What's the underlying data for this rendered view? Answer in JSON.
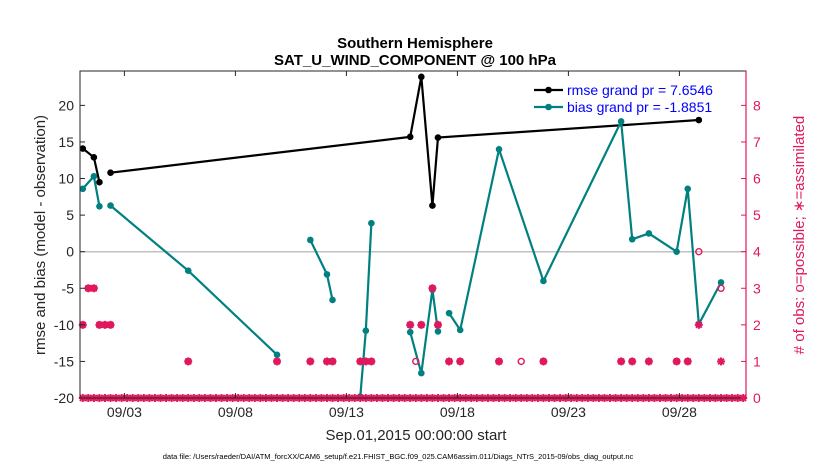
{
  "chart_data": {
    "type": "line",
    "title": "Southern Hemisphere",
    "subtitle": "SAT_U_WIND_COMPONENT @ 100 hPa",
    "xlabel": "Sep.01,2015 00:00:00 start",
    "ylabel": "rmse and bias (model - observation)",
    "y2label": "# of obs: o=possible; ∗=assimilated",
    "footnote": "data file: /Users/raeder/DAI/ATM_forcXX/CAM6_setup/f.e21.FHIST_BGC.f09_025.CAM6assim.011/Diags_NTrS_2015-09/obs_diag_output.nc",
    "xlim": [
      1.0,
      31.0
    ],
    "ylim": [
      -20,
      24.7
    ],
    "y2lim": [
      0,
      8.94
    ],
    "x_ticks": [
      3,
      8,
      13,
      18,
      23,
      28
    ],
    "x_tick_labels": [
      "09/03",
      "09/08",
      "09/13",
      "09/18",
      "09/23",
      "09/28"
    ],
    "y_ticks": [
      -20,
      -15,
      -10,
      -5,
      0,
      5,
      10,
      15,
      20
    ],
    "y2_ticks": [
      0,
      1,
      2,
      3,
      4,
      5,
      6,
      7,
      8
    ],
    "grid": false,
    "legend_position": "top-right",
    "zero_line": 0,
    "colors": {
      "rmse": "#000000",
      "bias": "#008080",
      "obs": "#e0185e",
      "zero": "#c0c0c0",
      "legend_text": "#0000ff"
    },
    "series": [
      {
        "name": "rmse grand pr = 7.6546",
        "points": [
          [
            1.125,
            14.1
          ],
          [
            1.625,
            12.9
          ],
          [
            1.875,
            9.5
          ],
          [
            2.125,
            null
          ],
          [
            2.375,
            10.8
          ],
          [
            15.875,
            15.7
          ],
          [
            16.375,
            23.9
          ],
          [
            16.875,
            6.3
          ],
          [
            17.125,
            15.6
          ],
          [
            28.875,
            18.0
          ]
        ]
      },
      {
        "name": "bias grand pr = -1.8851",
        "points": [
          [
            1.125,
            8.6
          ],
          [
            1.625,
            10.3
          ],
          [
            1.875,
            6.2
          ],
          [
            2.125,
            null
          ],
          [
            2.375,
            6.3
          ],
          [
            5.875,
            -2.6
          ],
          [
            9.875,
            -14.1
          ],
          [
            10.125,
            null
          ],
          [
            11.375,
            1.6
          ],
          [
            12.125,
            -3.1
          ],
          [
            12.375,
            -6.6
          ],
          [
            12.625,
            null
          ],
          [
            13.625,
            -19.8
          ],
          [
            13.875,
            -10.8
          ],
          [
            14.125,
            3.9
          ],
          [
            14.375,
            null
          ],
          [
            15.875,
            -11.0
          ],
          [
            16.375,
            -16.6
          ],
          [
            16.875,
            -5.2
          ],
          [
            17.125,
            -10.9
          ],
          [
            17.375,
            null
          ],
          [
            17.625,
            -8.4
          ],
          [
            18.125,
            -10.7
          ],
          [
            19.875,
            14.0
          ],
          [
            21.875,
            -4.0
          ],
          [
            25.375,
            17.8
          ],
          [
            25.875,
            1.7
          ],
          [
            26.625,
            2.5
          ],
          [
            27.875,
            0.0
          ],
          [
            28.375,
            8.6
          ],
          [
            28.875,
            -9.9
          ],
          [
            29.875,
            -4.2
          ]
        ]
      }
    ],
    "obs_possible": [
      [
        1.125,
        2
      ],
      [
        1.375,
        3
      ],
      [
        1.625,
        3
      ],
      [
        1.875,
        2
      ],
      [
        2.125,
        2
      ],
      [
        2.375,
        2
      ],
      [
        5.875,
        1
      ],
      [
        9.875,
        1
      ],
      [
        11.375,
        1
      ],
      [
        12.125,
        1
      ],
      [
        12.375,
        1
      ],
      [
        13.625,
        1
      ],
      [
        13.875,
        1
      ],
      [
        14.125,
        1
      ],
      [
        15.875,
        2
      ],
      [
        16.125,
        1
      ],
      [
        16.375,
        2
      ],
      [
        16.875,
        3
      ],
      [
        17.125,
        2
      ],
      [
        17.625,
        1
      ],
      [
        18.125,
        1
      ],
      [
        19.875,
        1
      ],
      [
        20.875,
        1
      ],
      [
        21.875,
        1
      ],
      [
        25.375,
        1
      ],
      [
        25.875,
        1
      ],
      [
        26.625,
        1
      ],
      [
        27.875,
        1
      ],
      [
        28.375,
        1
      ],
      [
        28.875,
        4
      ],
      [
        29.875,
        3
      ]
    ],
    "obs_assimilated": [
      [
        1.125,
        2
      ],
      [
        1.375,
        3
      ],
      [
        1.625,
        3
      ],
      [
        1.875,
        2
      ],
      [
        2.125,
        2
      ],
      [
        2.375,
        2
      ],
      [
        5.875,
        1
      ],
      [
        9.875,
        1
      ],
      [
        11.375,
        1
      ],
      [
        12.125,
        1
      ],
      [
        12.375,
        1
      ],
      [
        13.625,
        1
      ],
      [
        13.875,
        1
      ],
      [
        14.125,
        1
      ],
      [
        15.875,
        2
      ],
      [
        16.375,
        2
      ],
      [
        16.875,
        3
      ],
      [
        17.125,
        2
      ],
      [
        17.625,
        1
      ],
      [
        18.125,
        1
      ],
      [
        19.875,
        1
      ],
      [
        21.875,
        1
      ],
      [
        25.375,
        1
      ],
      [
        25.875,
        1
      ],
      [
        26.625,
        1
      ],
      [
        27.875,
        1
      ],
      [
        28.375,
        1
      ],
      [
        28.875,
        2
      ],
      [
        29.875,
        1
      ]
    ]
  }
}
